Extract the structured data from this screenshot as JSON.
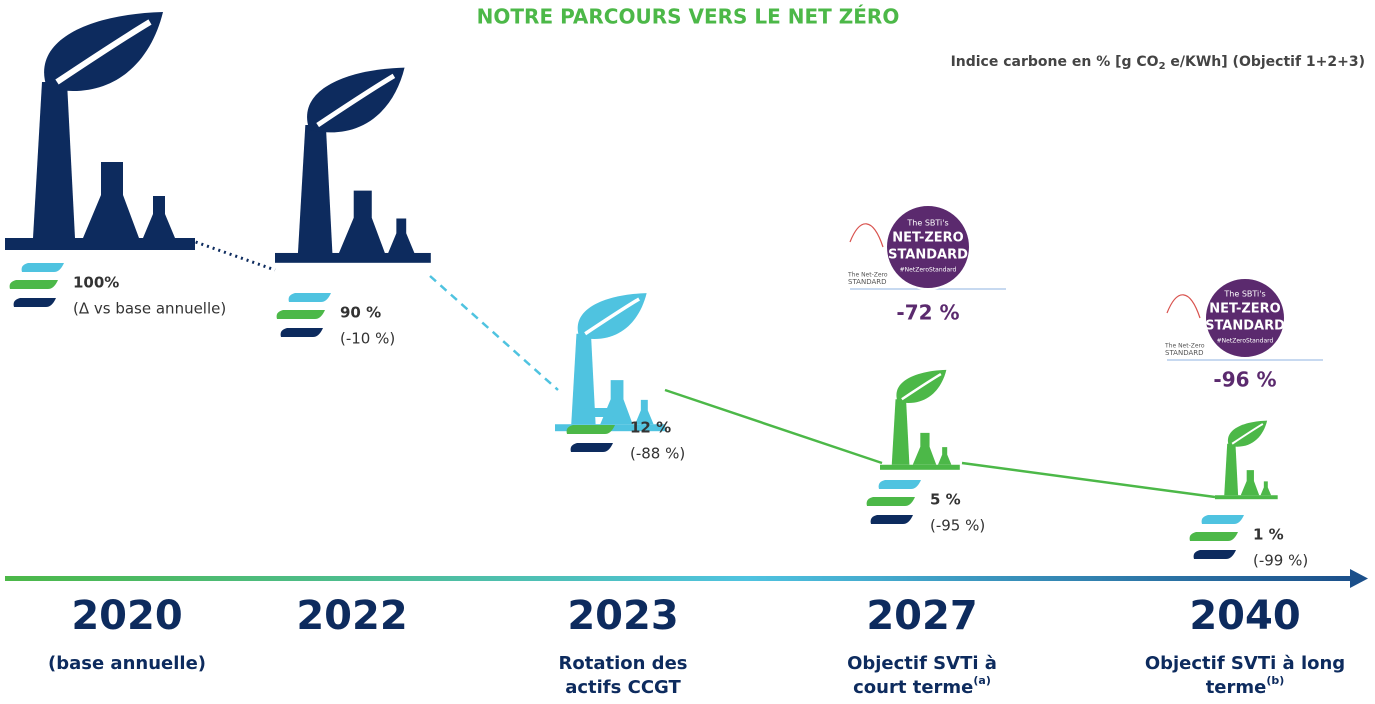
{
  "title": "NOTRE PARCOURS VERS LE NET ZÉRO",
  "subtitle": {
    "before": "Indice carbone en % [g CO",
    "sub": "2",
    "after": " e/KWh] (Objectif 1+2+3)"
  },
  "milestones": [
    {
      "year": "2020",
      "caption": [
        "(base annuelle)"
      ],
      "value": "100%",
      "change": "(Δ vs base annuelle)"
    },
    {
      "year": "2022",
      "caption": [],
      "value": "90 %",
      "change": "(-10 %)"
    },
    {
      "year": "2023",
      "caption": [
        "Rotation des",
        "actifs CCGT"
      ],
      "value": "12 %",
      "change": "(-88 %)"
    },
    {
      "year": "2027",
      "caption": [
        "Objectif SVTi à",
        "court terme"
      ],
      "caption_sup": "(a)",
      "value": "5 %",
      "change": "(-95 %)",
      "target": "-72 %",
      "badge": [
        "The SBTi's",
        "NET-ZERO",
        "STANDARD",
        "#NetZeroStandard"
      ],
      "logo": [
        "The Net-Zero",
        "STANDARD"
      ]
    },
    {
      "year": "2040",
      "caption": [
        "Objectif SVTi à long",
        "terme"
      ],
      "caption_sup": "(b)",
      "value": "1 %",
      "change": "(-99 %)",
      "target": "-96 %",
      "badge": [
        "The SBTi's",
        "NET-ZERO",
        "STANDARD",
        "#NetZeroStandard"
      ],
      "logo": [
        "The Net-Zero",
        "STANDARD"
      ]
    }
  ]
}
